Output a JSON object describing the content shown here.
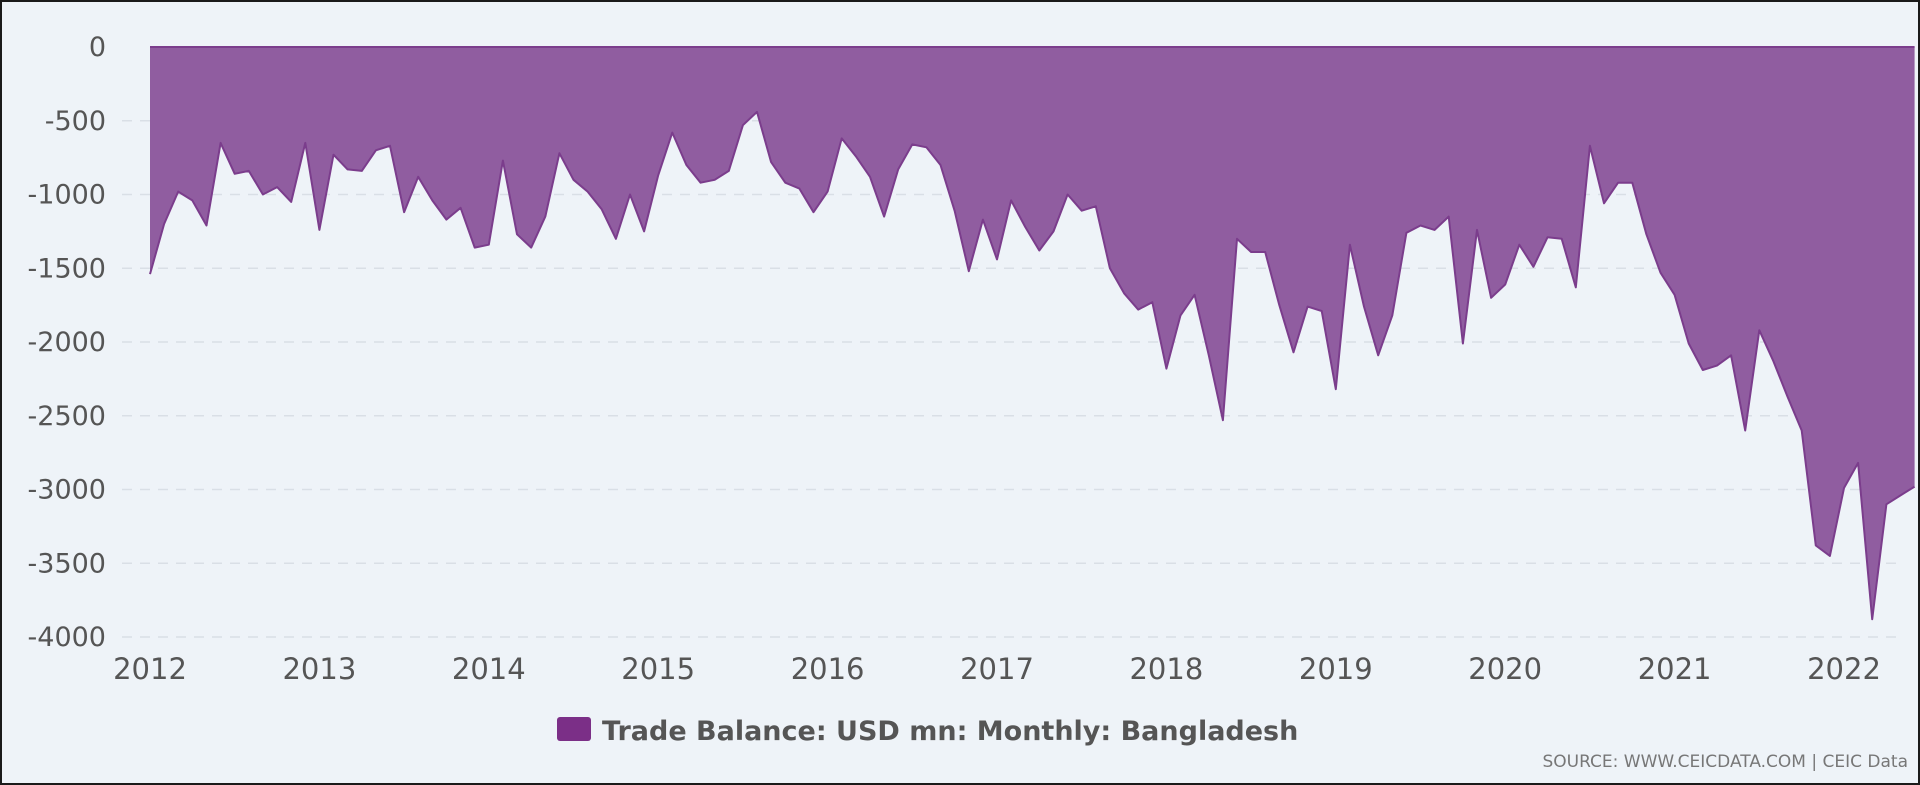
{
  "chart_data": {
    "type": "area",
    "title": "",
    "xlabel": "",
    "ylabel": "",
    "ylim": [
      -4000,
      0
    ],
    "y_ticks": [
      "0",
      "-500",
      "-1000",
      "-1500",
      "-2000",
      "-2500",
      "-3000",
      "-3500",
      "-4000"
    ],
    "x_ticks": [
      "2012",
      "2013",
      "2014",
      "2015",
      "2016",
      "2017",
      "2018",
      "2019",
      "2020",
      "2021",
      "2022"
    ],
    "grid": true,
    "legend_position": "bottom",
    "colors": {
      "fill": "#905da0",
      "line": "#7b3d8c",
      "legend": "#7b2f87"
    },
    "series": [
      {
        "name": "Trade Balance: USD mn: Monthly: Bangladesh",
        "x": [
          "2012-01",
          "2012-02",
          "2012-03",
          "2012-04",
          "2012-05",
          "2012-06",
          "2012-07",
          "2012-08",
          "2012-09",
          "2012-10",
          "2012-11",
          "2012-12",
          "2013-01",
          "2013-02",
          "2013-03",
          "2013-04",
          "2013-05",
          "2013-06",
          "2013-07",
          "2013-08",
          "2013-09",
          "2013-10",
          "2013-11",
          "2013-12",
          "2014-01",
          "2014-02",
          "2014-03",
          "2014-04",
          "2014-05",
          "2014-06",
          "2014-07",
          "2014-08",
          "2014-09",
          "2014-10",
          "2014-11",
          "2014-12",
          "2015-01",
          "2015-02",
          "2015-03",
          "2015-04",
          "2015-05",
          "2015-06",
          "2015-07",
          "2015-08",
          "2015-09",
          "2015-10",
          "2015-11",
          "2015-12",
          "2016-01",
          "2016-02",
          "2016-03",
          "2016-04",
          "2016-05",
          "2016-06",
          "2016-07",
          "2016-08",
          "2016-09",
          "2016-10",
          "2016-11",
          "2016-12",
          "2017-01",
          "2017-02",
          "2017-03",
          "2017-04",
          "2017-05",
          "2017-06",
          "2017-07",
          "2017-08",
          "2017-09",
          "2017-10",
          "2017-11",
          "2017-12",
          "2018-01",
          "2018-02",
          "2018-03",
          "2018-04",
          "2018-05",
          "2018-06",
          "2018-07",
          "2018-08",
          "2018-09",
          "2018-10",
          "2018-11",
          "2018-12",
          "2019-01",
          "2019-02",
          "2019-03",
          "2019-04",
          "2019-05",
          "2019-06",
          "2019-07",
          "2019-08",
          "2019-09",
          "2019-10",
          "2019-11",
          "2019-12",
          "2020-01",
          "2020-02",
          "2020-03",
          "2020-04",
          "2020-05",
          "2020-06",
          "2020-07",
          "2020-08",
          "2020-09",
          "2020-10",
          "2020-11",
          "2020-12",
          "2021-01",
          "2021-02",
          "2021-03",
          "2021-04",
          "2021-05",
          "2021-06",
          "2021-07",
          "2021-08",
          "2021-09",
          "2021-10",
          "2021-11",
          "2021-12",
          "2022-01",
          "2022-02",
          "2022-03",
          "2022-04",
          "2022-05",
          "2022-06"
        ],
        "values": [
          -1540,
          -1200,
          -980,
          -1040,
          -1210,
          -650,
          -860,
          -840,
          -1000,
          -950,
          -1050,
          -650,
          -1240,
          -730,
          -830,
          -840,
          -700,
          -670,
          -1120,
          -880,
          -1040,
          -1170,
          -1090,
          -1360,
          -1340,
          -770,
          -1270,
          -1360,
          -1150,
          -720,
          -900,
          -980,
          -1100,
          -1300,
          -1000,
          -1250,
          -870,
          -580,
          -800,
          -920,
          -900,
          -840,
          -530,
          -440,
          -780,
          -920,
          -960,
          -1120,
          -980,
          -620,
          -740,
          -880,
          -1150,
          -830,
          -660,
          -680,
          -800,
          -1110,
          -1520,
          -1170,
          -1440,
          -1040,
          -1220,
          -1380,
          -1250,
          -1000,
          -1110,
          -1080,
          -1500,
          -1670,
          -1780,
          -1730,
          -2180,
          -1820,
          -1680,
          -2090,
          -2530,
          -1300,
          -1390,
          -1390,
          -1750,
          -2070,
          -1760,
          -1790,
          -2320,
          -1340,
          -1760,
          -2090,
          -1820,
          -1260,
          -1210,
          -1240,
          -1150,
          -2010,
          -1240,
          -1700,
          -1610,
          -1340,
          -1490,
          -1290,
          -1300,
          -1630,
          -670,
          -1060,
          -920,
          -920,
          -1270,
          -1530,
          -1680,
          -2010,
          -2190,
          -2160,
          -2090,
          -2600,
          -1920,
          -2130,
          -2370,
          -2600,
          -3380,
          -3450,
          -2990,
          -2820,
          -3880,
          -3100,
          -3040,
          -2980
        ]
      }
    ]
  },
  "source": "SOURCE: WWW.CEICDATA.COM | CEIC Data"
}
